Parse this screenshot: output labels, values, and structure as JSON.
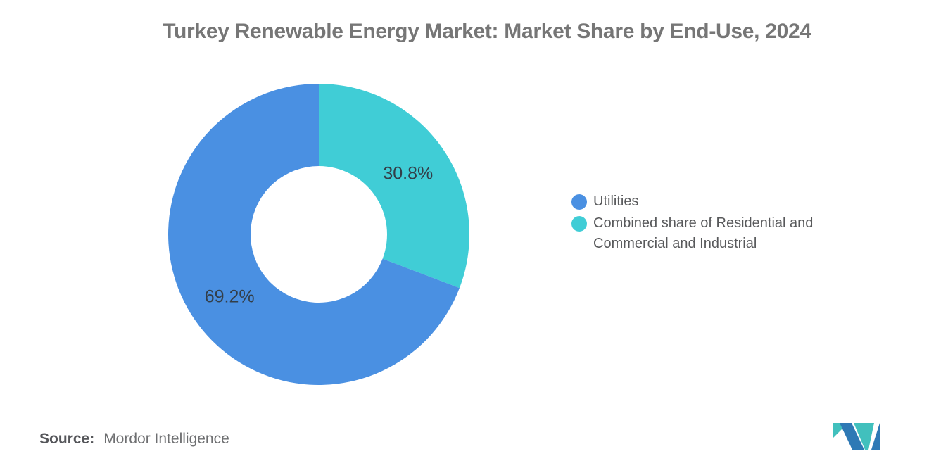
{
  "title": "Turkey Renewable Energy Market: Market Share by End-Use, 2024",
  "chart_data": {
    "type": "pie",
    "subtype": "donut",
    "title": "Turkey Renewable Energy Market: Market Share by End-Use, 2024",
    "series": [
      {
        "name": "Utilities",
        "value": 69.2,
        "label": "69.2%",
        "color": "#4A90E2"
      },
      {
        "name": "Combined share of Residential and Commercial and Industrial",
        "value": 30.8,
        "label": "30.8%",
        "color": "#40CDD6"
      }
    ],
    "start_angle": "top",
    "clockwise_first_slice": "Combined share of Residential and Commercial and Industrial",
    "inner_radius_ratio": 0.45,
    "legend_position": "right",
    "slice_label_color": "#333E48",
    "background": "#FFFFFF"
  },
  "legend": {
    "items": [
      {
        "label": "Utilities",
        "color": "#4A90E2"
      },
      {
        "label": "Combined share of Residential and Commercial and Industrial",
        "color": "#40CDD6"
      }
    ]
  },
  "source": {
    "label": "Source:",
    "value": "Mordor Intelligence"
  },
  "logo": {
    "alt": "mordor-intelligence-logo",
    "blue": "#2E79B5",
    "teal": "#41C0BD"
  }
}
